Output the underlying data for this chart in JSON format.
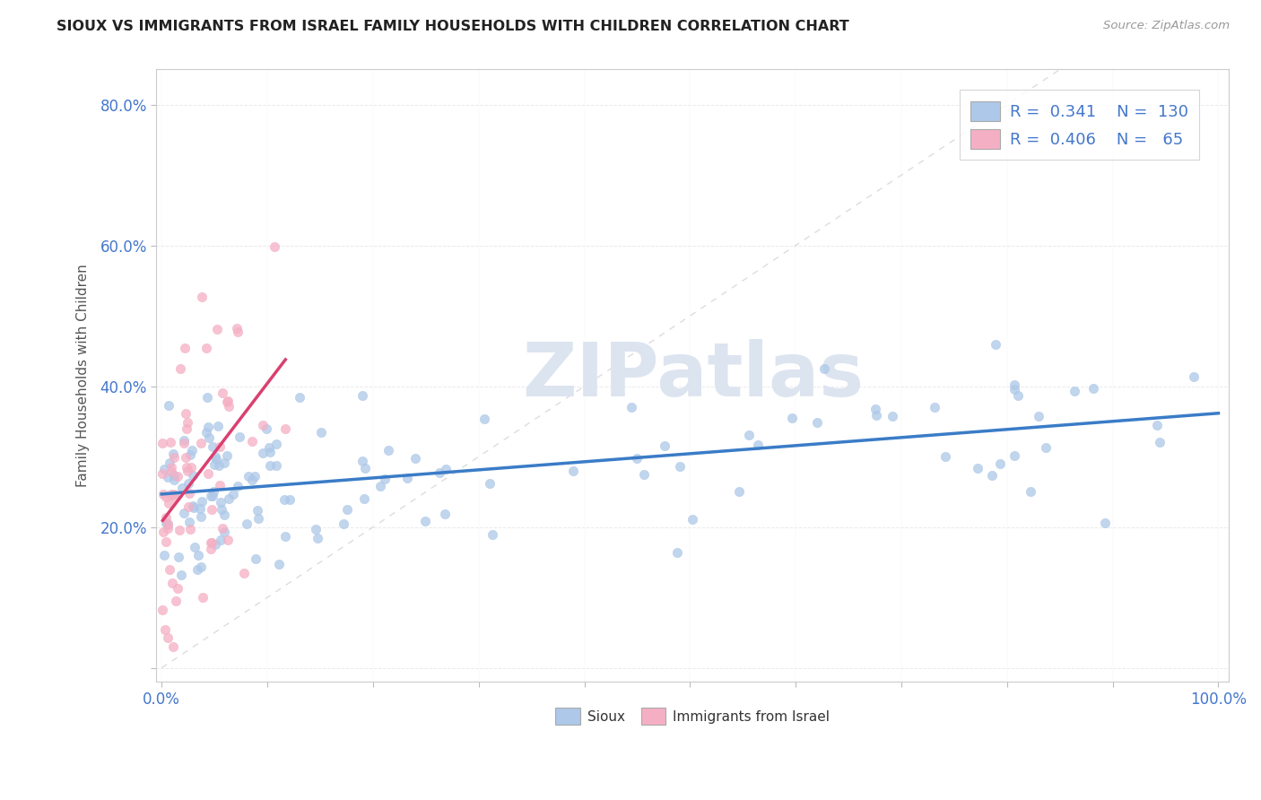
{
  "title": "SIOUX VS IMMIGRANTS FROM ISRAEL FAMILY HOUSEHOLDS WITH CHILDREN CORRELATION CHART",
  "source": "Source: ZipAtlas.com",
  "ylabel": "Family Households with Children",
  "sioux_R": 0.341,
  "sioux_N": 130,
  "israel_R": 0.406,
  "israel_N": 65,
  "sioux_color": "#adc8e8",
  "israel_color": "#f5afc4",
  "sioux_line_color": "#3a7cc7",
  "israel_line_color": "#d94070",
  "ref_line_color": "#dddddd",
  "watermark_color": "#dce4f0",
  "background": "#ffffff",
  "grid_color": "#e8e8e8",
  "spine_color": "#cccccc",
  "tick_label_color": "#4477cc",
  "title_color": "#222222",
  "source_color": "#999999",
  "ylabel_color": "#555555"
}
